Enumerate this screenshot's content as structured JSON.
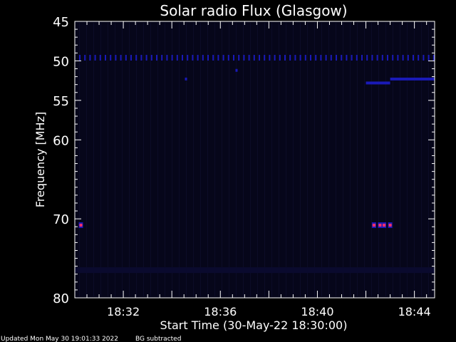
{
  "chart_data": {
    "type": "heatmap",
    "title": "Solar radio Flux (Glasgow)",
    "xlabel": "Start Time (30-May-22 18:30:00)",
    "ylabel": "Frequency [MHz]",
    "x_range": [
      "18:30:00",
      "18:44:50"
    ],
    "y_range": [
      45,
      80
    ],
    "y_scale": "reversed",
    "x_ticks": [
      "18:32",
      "18:36",
      "18:40",
      "18:44"
    ],
    "y_ticks": [
      45,
      50,
      55,
      60,
      70,
      80
    ],
    "background_subtracted": true,
    "colors": {
      "background": "#000000",
      "plot_bg": "#06061a",
      "low": "#0a0a2e",
      "mid": "#1a1ab8",
      "high": "#ff2f6b"
    },
    "features": [
      {
        "type": "periodic_spikes",
        "freq_mhz": 49.6,
        "time_start": "18:30:00",
        "time_end": "18:44:50",
        "intensity": "mid"
      },
      {
        "type": "band",
        "freq_mhz": 52.8,
        "time_start": "18:42:00",
        "time_end": "18:43:00",
        "intensity": "mid"
      },
      {
        "type": "band",
        "freq_mhz": 52.3,
        "time_start": "18:43:00",
        "time_end": "18:44:50",
        "intensity": "mid"
      },
      {
        "type": "band",
        "freq_mhz": 76.5,
        "time_start": "18:30:00",
        "time_end": "18:44:50",
        "intensity": "low"
      },
      {
        "type": "spot",
        "freq_mhz": 70.8,
        "time": "18:30:15",
        "intensity": "high"
      },
      {
        "type": "spot",
        "freq_mhz": 70.8,
        "time": "18:42:20",
        "intensity": "high"
      },
      {
        "type": "spot",
        "freq_mhz": 70.8,
        "time": "18:42:35",
        "intensity": "high"
      },
      {
        "type": "spot",
        "freq_mhz": 70.8,
        "time": "18:42:45",
        "intensity": "high"
      },
      {
        "type": "spot",
        "freq_mhz": 70.8,
        "time": "18:43:00",
        "intensity": "high"
      },
      {
        "type": "spot",
        "freq_mhz": 52.3,
        "time": "18:34:35",
        "intensity": "mid"
      },
      {
        "type": "spot",
        "freq_mhz": 51.2,
        "time": "18:36:40",
        "intensity": "mid"
      }
    ]
  },
  "footer": {
    "updated": "Updated Mon May 30 19:01:33 2022",
    "note": "BG subtracted"
  }
}
